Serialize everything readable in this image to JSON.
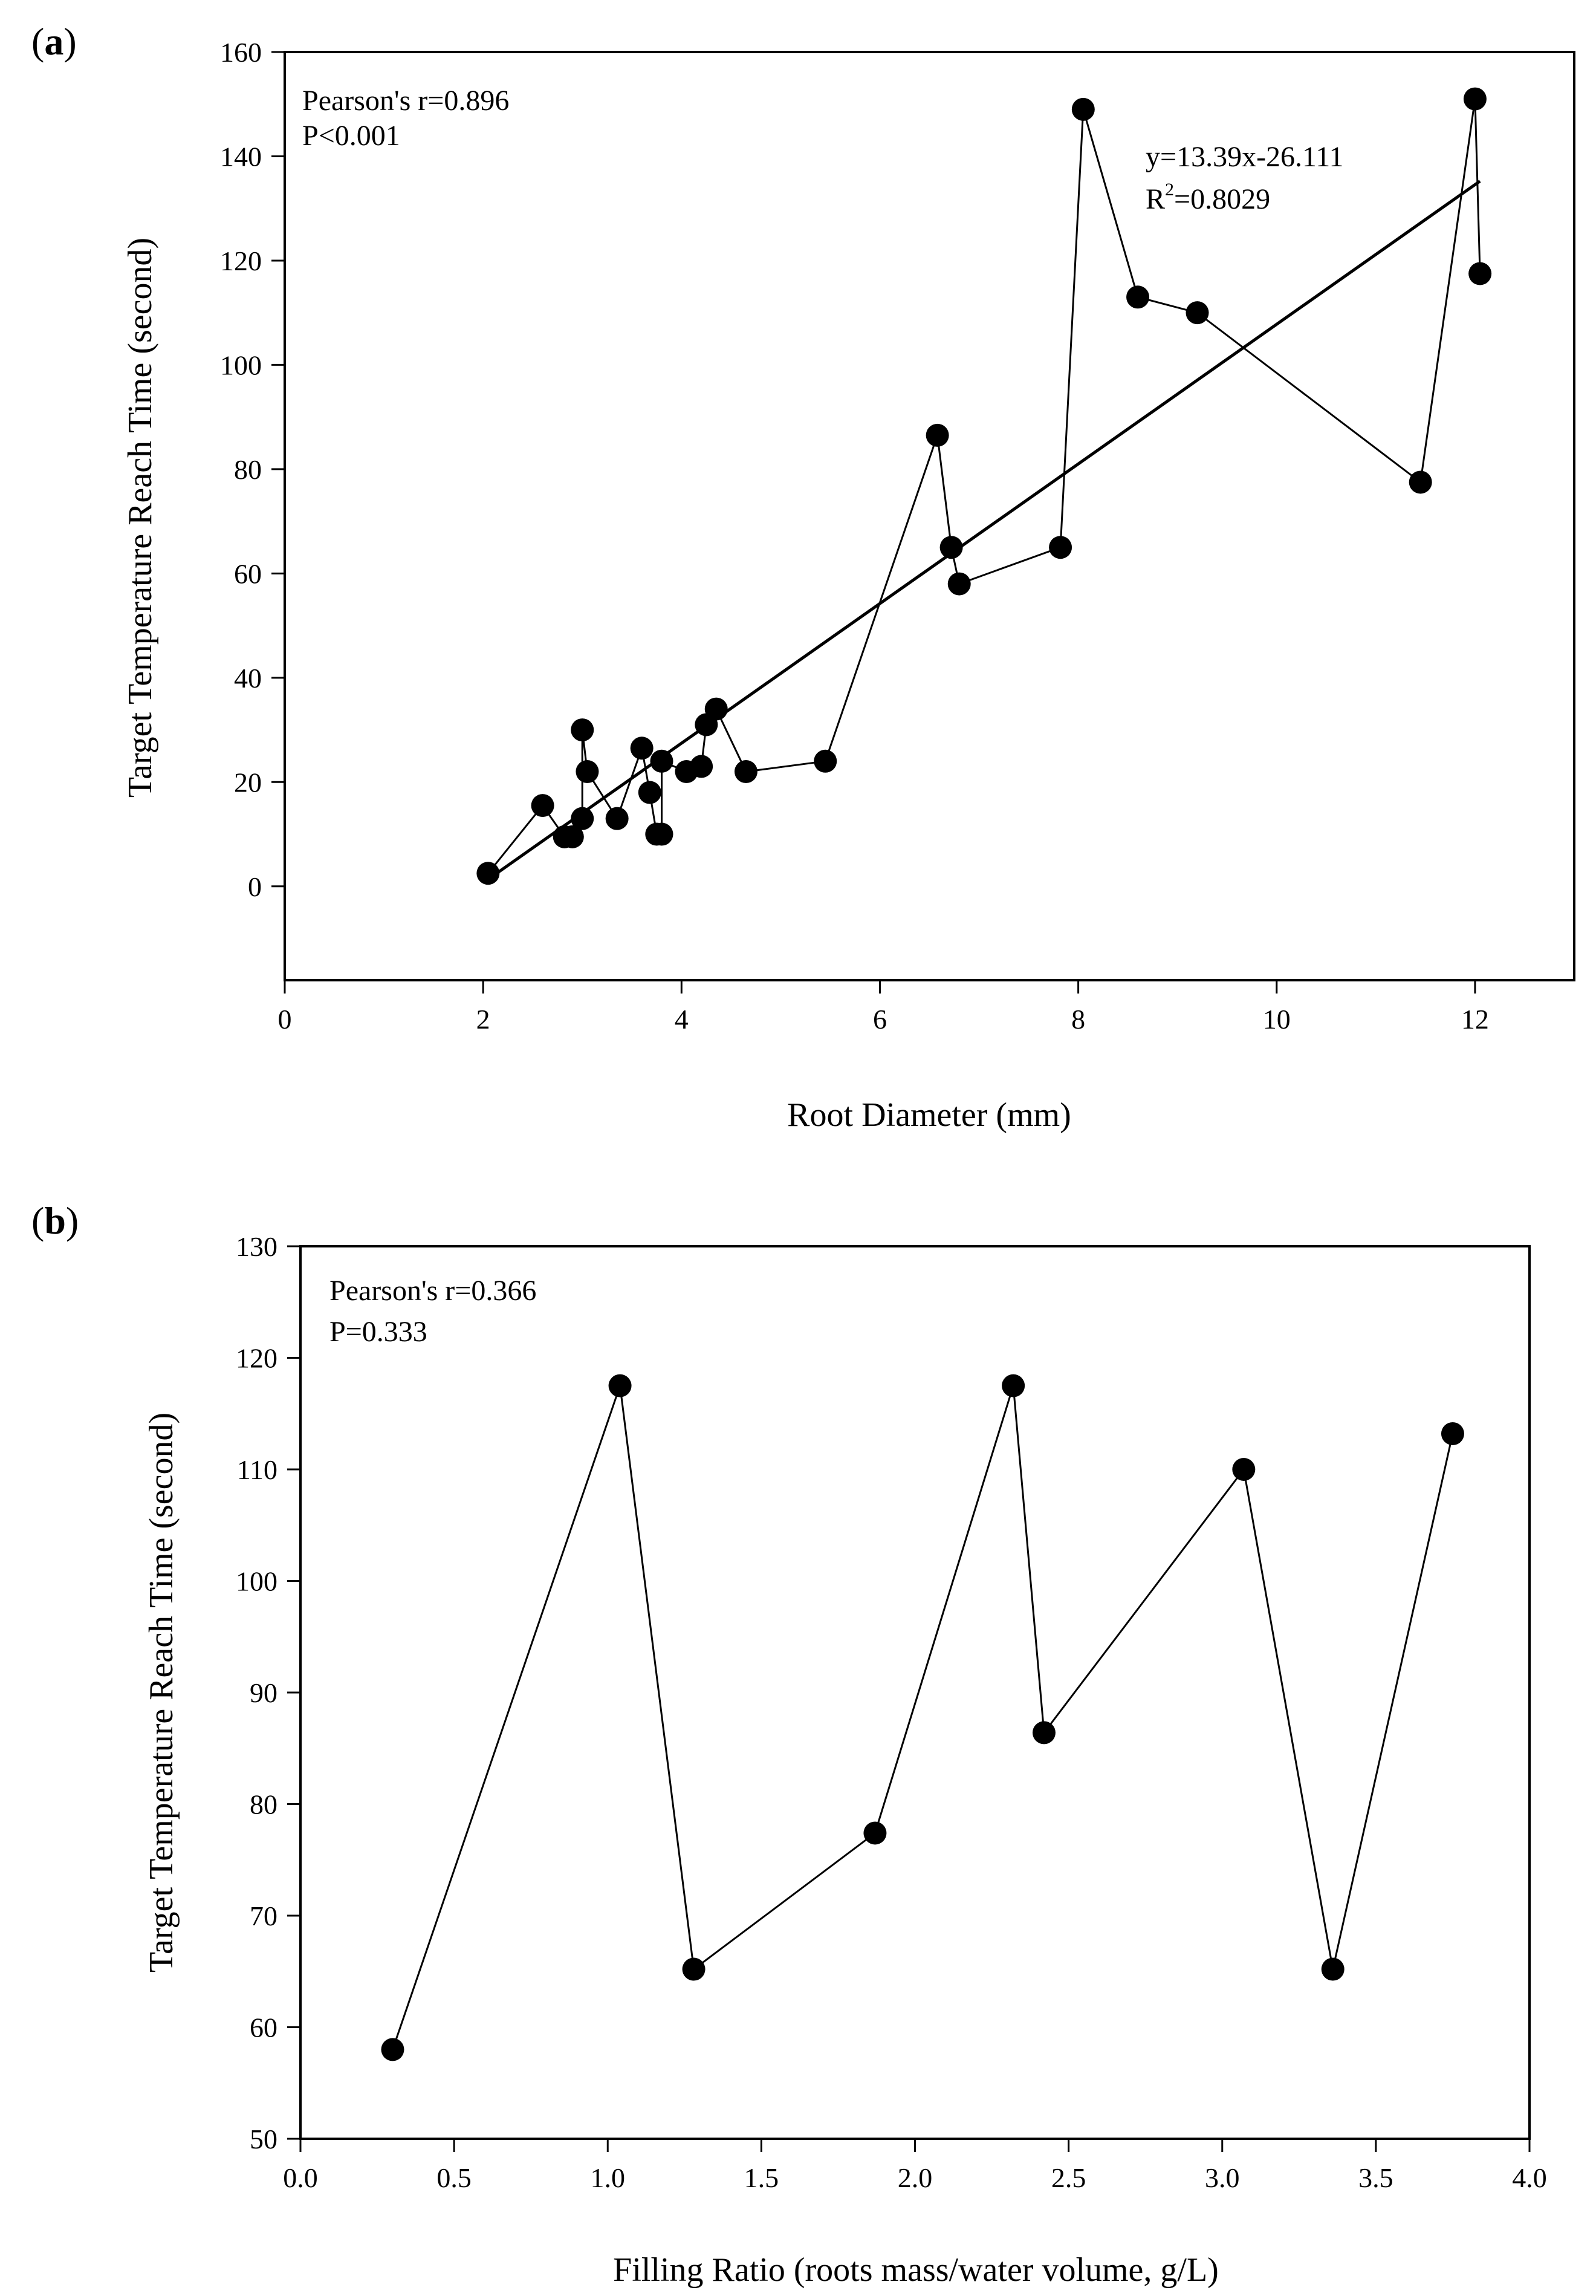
{
  "panels": [
    {
      "label": "(a)",
      "label_letter": "a",
      "annotation": {
        "line1": "Pearson's r=0.896",
        "line2": "P<0.001"
      },
      "regression": {
        "line1": "y=13.39x-26.111",
        "line2_pre": "R",
        "line2_sup": "2",
        "line2_post": "=0.8029"
      }
    },
    {
      "label": "(b)",
      "label_letter": "b",
      "annotation": {
        "line1": "Pearson's r=0.366",
        "line2": "P=0.333"
      }
    }
  ],
  "chart_data": [
    {
      "type": "line",
      "xlabel": "Root Diameter (mm)",
      "ylabel": "Target Temperature Reach Time (second)",
      "xlim": [
        0,
        13
      ],
      "ylim": [
        -18,
        160
      ],
      "xticks": [
        0,
        2,
        4,
        6,
        8,
        10,
        12
      ],
      "yticks": [
        0,
        20,
        40,
        60,
        80,
        100,
        120,
        140,
        160
      ],
      "grid": false,
      "series": [
        {
          "markers": true,
          "x": [
            2.05,
            2.6,
            2.82,
            2.9,
            3.0,
            3.0,
            3.05,
            3.35,
            3.6,
            3.68,
            3.75,
            3.8,
            3.8,
            4.05,
            4.2,
            4.25,
            4.35,
            4.65,
            5.45,
            6.58,
            6.72,
            6.8,
            7.82,
            8.05,
            8.6,
            9.2,
            11.45,
            12.0,
            12.05
          ],
          "y": [
            2.5,
            15.5,
            9.5,
            9.5,
            13,
            30,
            22,
            13,
            26.5,
            18,
            10,
            10,
            24,
            22,
            23,
            31,
            34,
            22,
            24,
            86.5,
            65,
            58,
            65,
            149,
            113,
            110,
            77.5,
            151,
            117.5
          ]
        }
      ],
      "trendline": {
        "slope": 13.39,
        "intercept": -26.111,
        "x_range": [
          2.05,
          12.05
        ]
      }
    },
    {
      "type": "line",
      "xlabel": "Filling Ratio (roots mass/water volume, g/L)",
      "ylabel": "Target Temperature Reach Time (second)",
      "xlim": [
        0.0,
        4.0
      ],
      "ylim": [
        50,
        130
      ],
      "xticks": [
        "0.0",
        "0.5",
        "1.0",
        "1.5",
        "2.0",
        "2.5",
        "3.0",
        "3.5",
        "4.0"
      ],
      "yticks": [
        50,
        60,
        70,
        80,
        90,
        100,
        110,
        120,
        130
      ],
      "grid": false,
      "series": [
        {
          "markers": true,
          "x": [
            0.3,
            1.04,
            1.28,
            1.87,
            2.32,
            2.42,
            3.07,
            3.36,
            3.75
          ],
          "y": [
            58,
            117.5,
            65.2,
            77.4,
            117.5,
            86.4,
            110,
            65.2,
            113.2
          ]
        }
      ]
    }
  ]
}
